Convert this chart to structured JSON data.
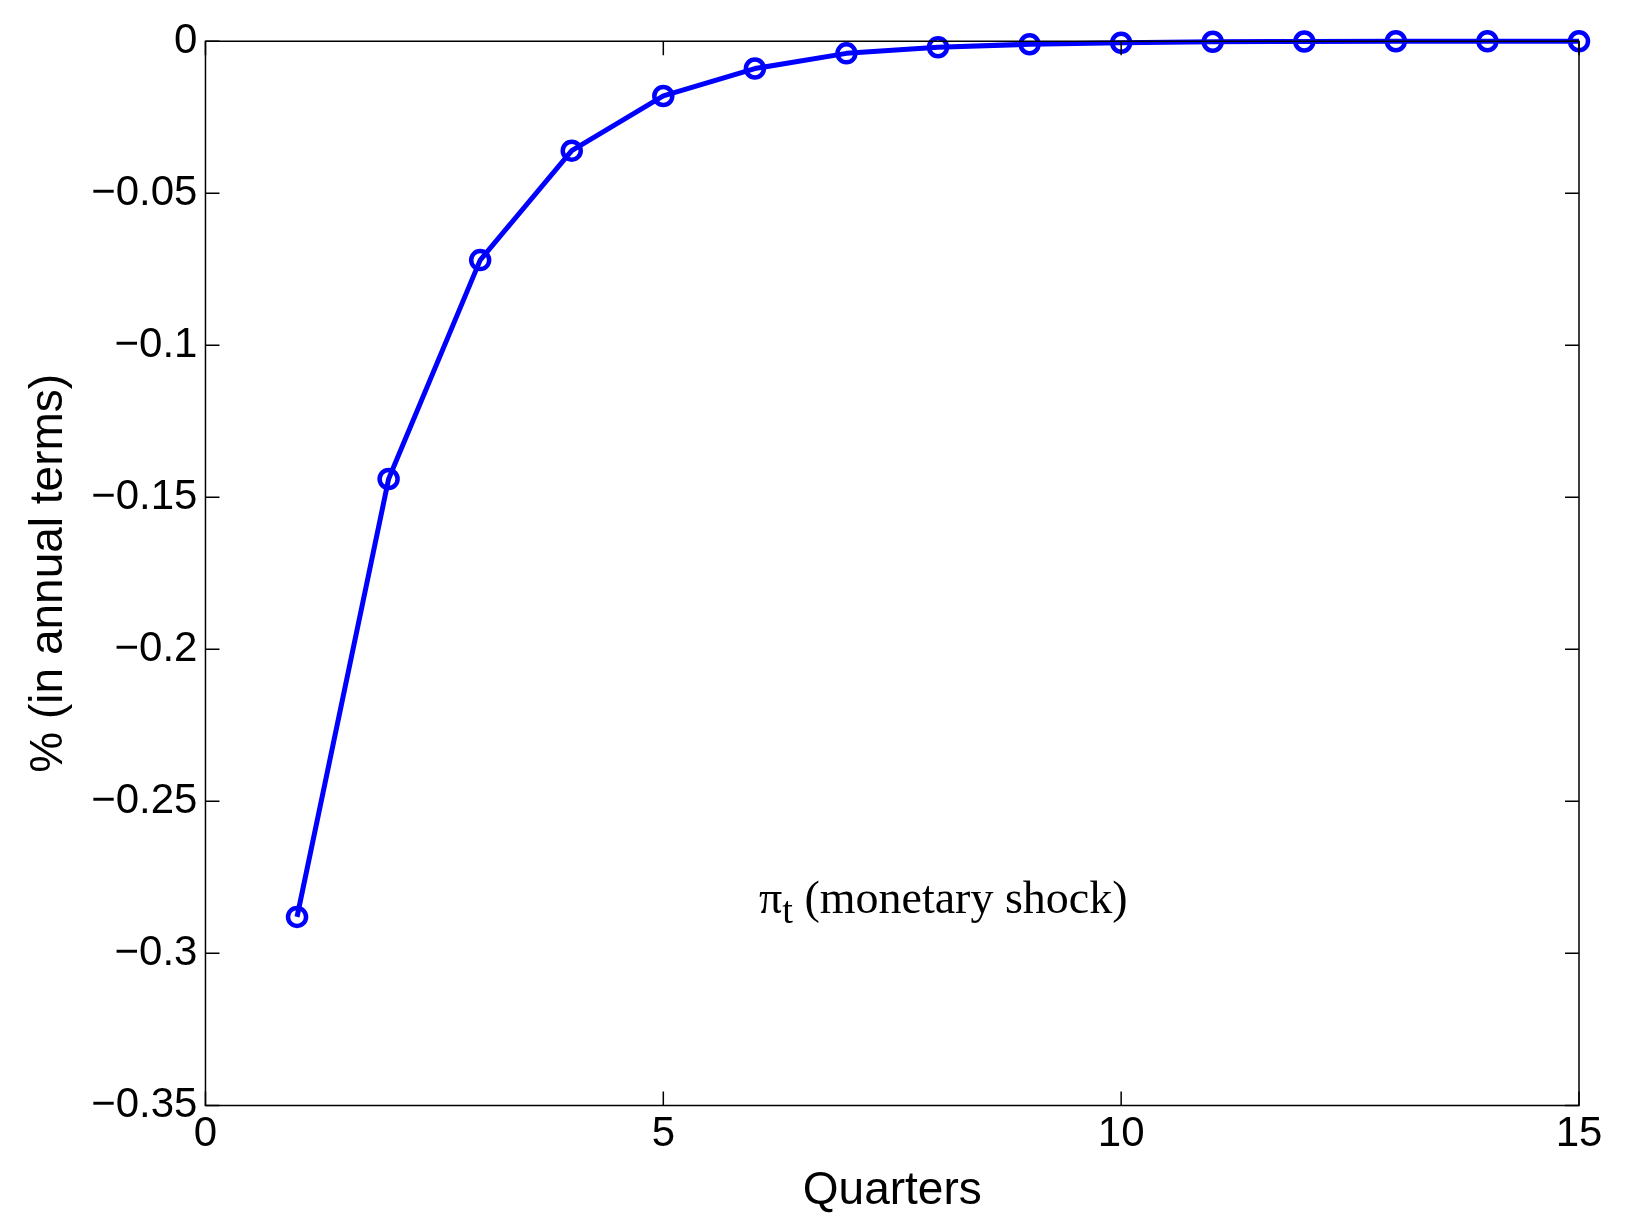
{
  "chart_data": {
    "type": "line",
    "xlabel": "Quarters",
    "ylabel": "% (in annual terms)",
    "annotations": [
      "π$_{t}$ (monetary shock)"
    ],
    "x": [
      1,
      2,
      3,
      4,
      5,
      6,
      7,
      8,
      9,
      10,
      11,
      12,
      13,
      14,
      15
    ],
    "series": [
      {
        "color": "#0000ff",
        "values": [
          -0.288,
          -0.144,
          -0.072,
          -0.036,
          -0.018,
          -0.009,
          -0.004,
          -0.002,
          -0.001,
          -0.0005,
          -0.0002,
          -0.0001,
          0,
          0,
          0
        ]
      }
    ],
    "xlim": [
      0,
      15
    ],
    "xticks": [
      0,
      5,
      10,
      15
    ],
    "ylim": [
      -0.35,
      0
    ],
    "yticks": [
      -0.35,
      -0.3,
      -0.25,
      -0.2,
      -0.15,
      -0.1,
      -0.05,
      0
    ],
    "grid": false,
    "legend": false,
    "marker": "circle",
    "line_style": "solid"
  }
}
